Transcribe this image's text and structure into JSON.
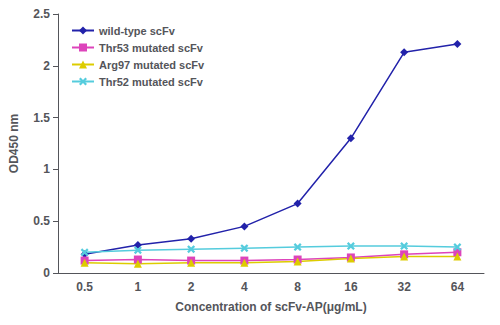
{
  "chart_data": {
    "type": "line",
    "categories": [
      "0.5",
      "1",
      "2",
      "4",
      "8",
      "16",
      "32",
      "64"
    ],
    "series": [
      {
        "name": "wild-type scFv",
        "color": "#2222aa",
        "marker": "diamond",
        "values": [
          0.18,
          0.27,
          0.33,
          0.45,
          0.67,
          1.3,
          2.13,
          2.21
        ]
      },
      {
        "name": "Thr53 mutated scFv",
        "color": "#dd44bb",
        "marker": "square",
        "values": [
          0.12,
          0.13,
          0.12,
          0.12,
          0.13,
          0.15,
          0.18,
          0.2
        ]
      },
      {
        "name": "Arg97 mutated scFv",
        "color": "#ddcc00",
        "marker": "triangle",
        "values": [
          0.1,
          0.09,
          0.1,
          0.1,
          0.11,
          0.14,
          0.16,
          0.16
        ]
      },
      {
        "name": "Thr52 mutated scFv",
        "color": "#55ccdd",
        "marker": "x",
        "values": [
          0.2,
          0.22,
          0.23,
          0.24,
          0.25,
          0.26,
          0.26,
          0.25
        ]
      }
    ],
    "x_label": "Concentration of scFv-AP(μg/mL)",
    "y_label": "OD450 nm",
    "ylim": [
      0,
      2.5
    ],
    "yticks": [
      0,
      0.5,
      1,
      1.5,
      2,
      2.5
    ],
    "grid": false,
    "legend": "upper left"
  }
}
